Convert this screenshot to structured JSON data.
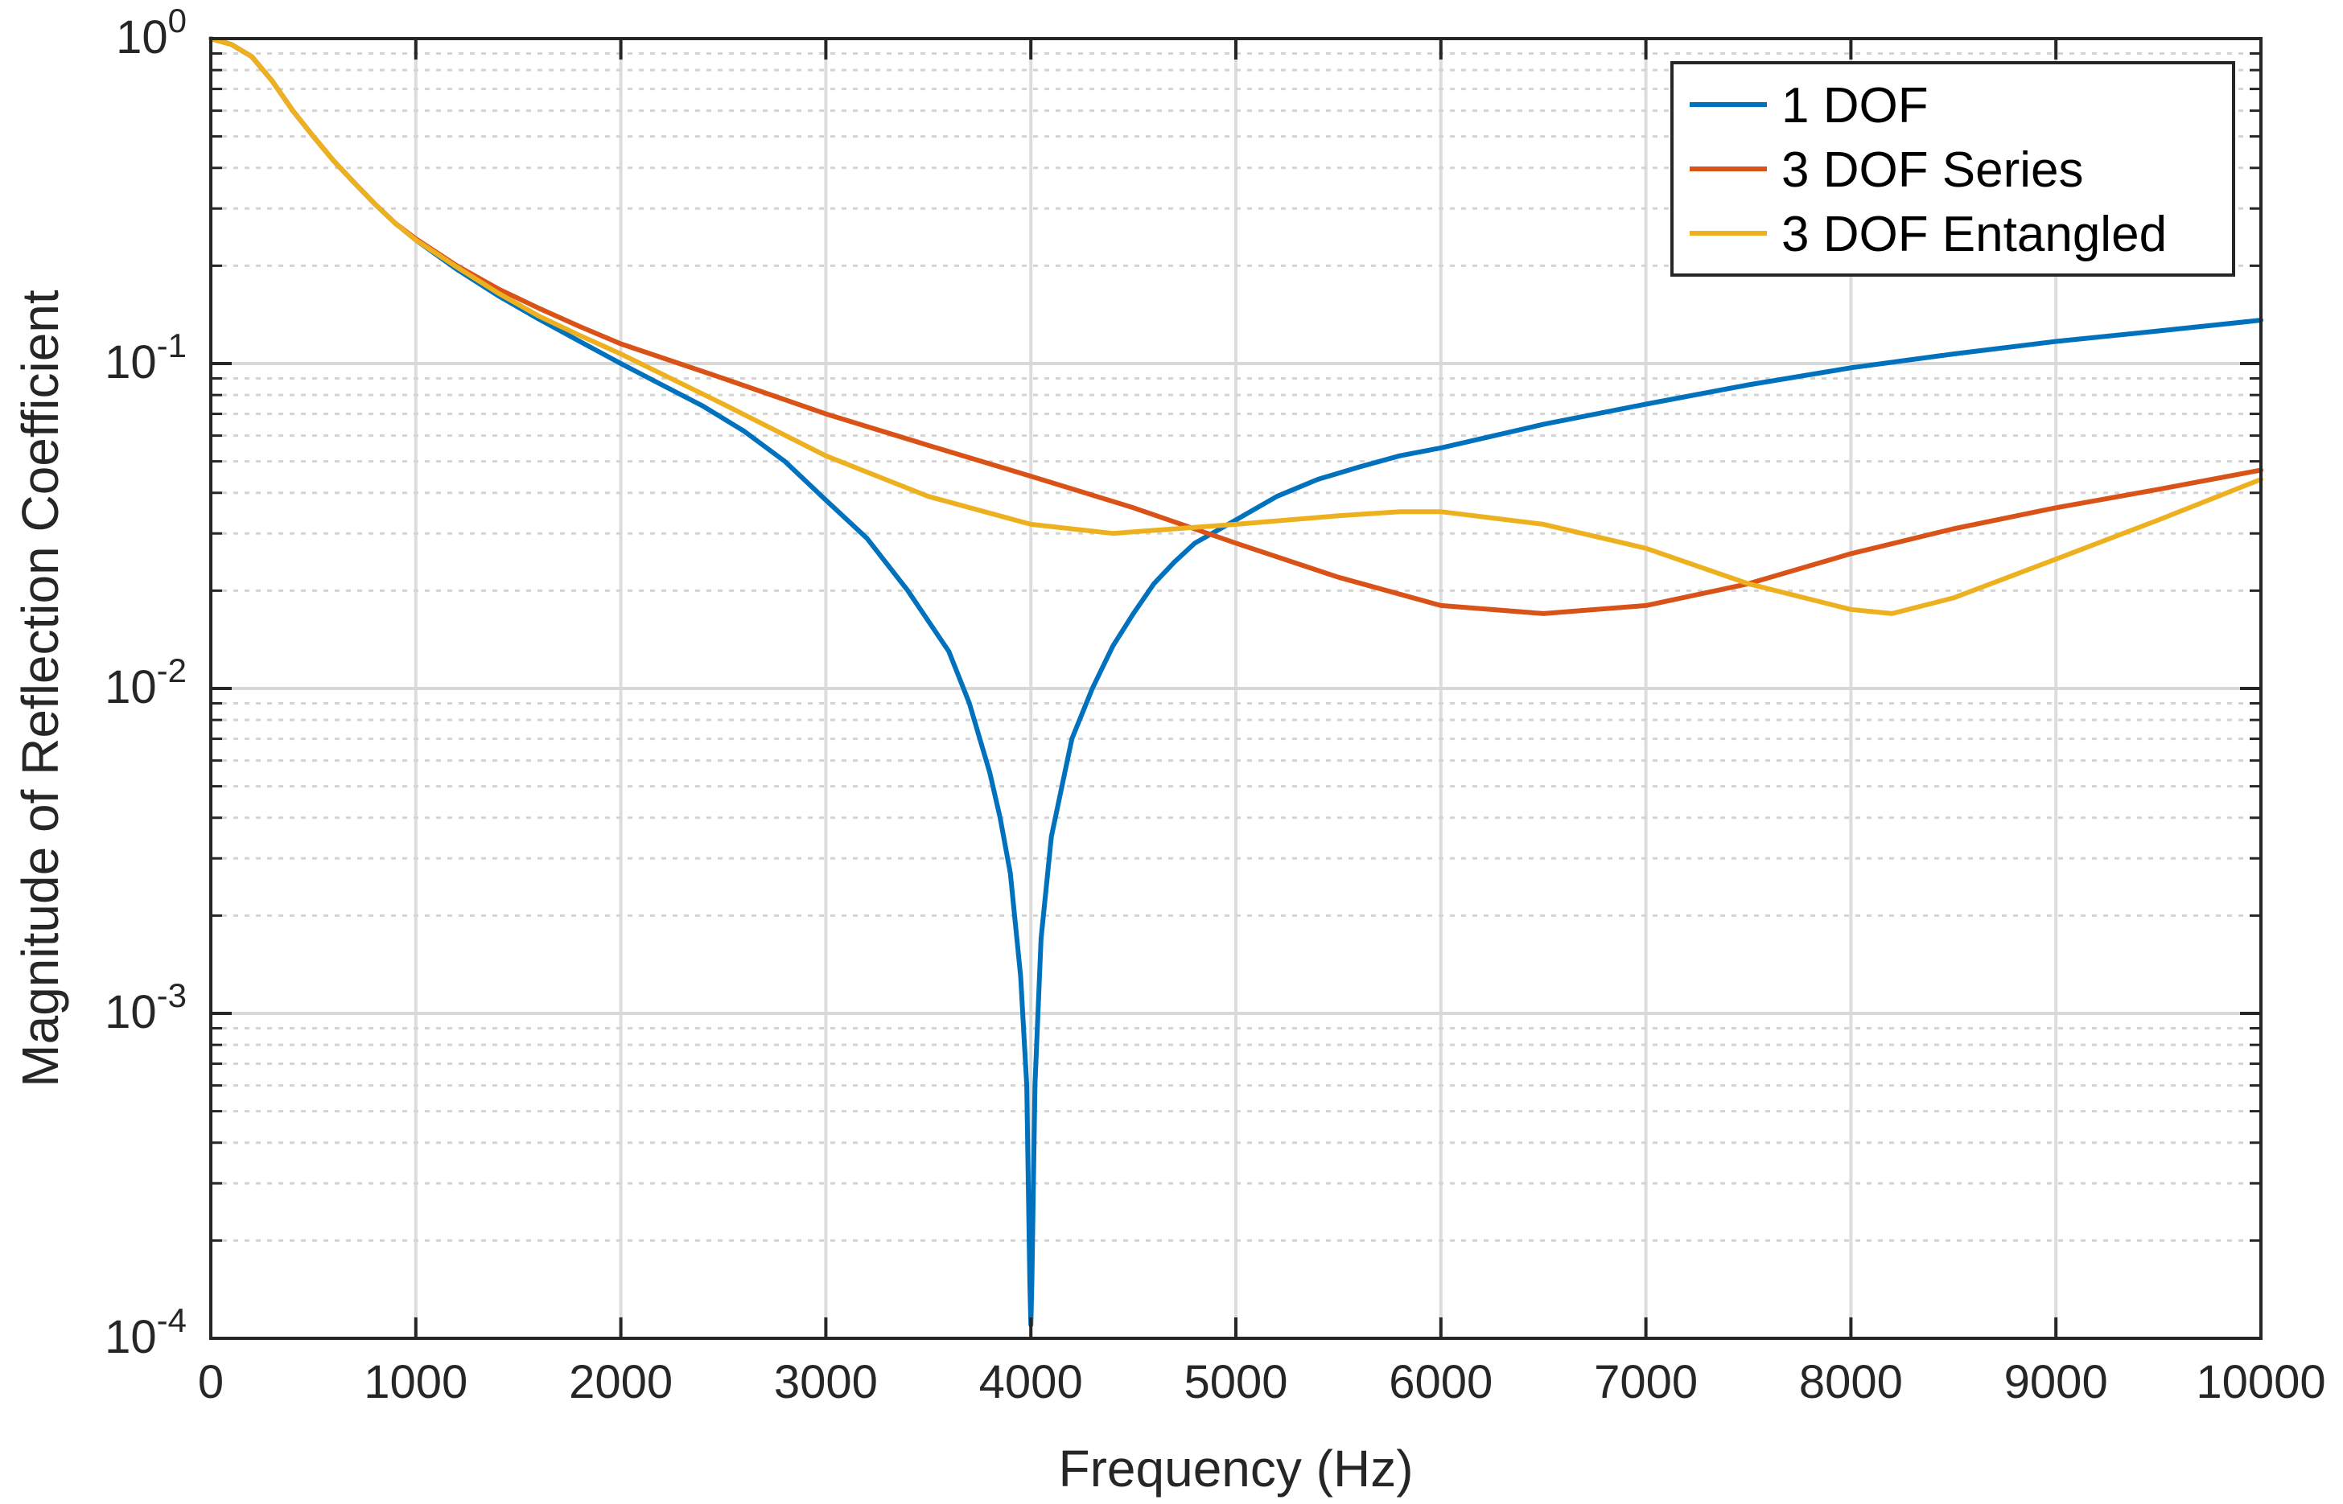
{
  "chart_data": {
    "type": "line",
    "title": "",
    "xlabel": "Frequency (Hz)",
    "ylabel": "Magnitude of Reflection Coefficient",
    "yscale": "log",
    "xlim": [
      0,
      10000
    ],
    "ylim": [
      0.0001,
      1
    ],
    "grid": true,
    "minor_grid": true,
    "legend_position": "top-right",
    "x_ticks": [
      0,
      1000,
      2000,
      3000,
      4000,
      5000,
      6000,
      7000,
      8000,
      9000,
      10000
    ],
    "x_tick_labels": [
      "0",
      "1000",
      "2000",
      "3000",
      "4000",
      "5000",
      "6000",
      "7000",
      "8000",
      "9000",
      "10000"
    ],
    "y_ticks": [
      {
        "value": 1,
        "base": "10",
        "exp": "0"
      },
      {
        "value": 0.1,
        "base": "10",
        "exp": "-1"
      },
      {
        "value": 0.01,
        "base": "10",
        "exp": "-2"
      },
      {
        "value": 0.001,
        "base": "10",
        "exp": "-3"
      },
      {
        "value": 0.0001,
        "base": "10",
        "exp": "-4"
      }
    ],
    "series": [
      {
        "name": "1 DOF",
        "color": "#0072BD",
        "points": [
          [
            0,
            1.0
          ],
          [
            100,
            0.96
          ],
          [
            200,
            0.88
          ],
          [
            300,
            0.74
          ],
          [
            400,
            0.6
          ],
          [
            500,
            0.5
          ],
          [
            600,
            0.42
          ],
          [
            700,
            0.36
          ],
          [
            800,
            0.31
          ],
          [
            900,
            0.27
          ],
          [
            1000,
            0.24
          ],
          [
            1200,
            0.195
          ],
          [
            1400,
            0.162
          ],
          [
            1600,
            0.137
          ],
          [
            1800,
            0.117
          ],
          [
            2000,
            0.1
          ],
          [
            2200,
            0.086
          ],
          [
            2400,
            0.074
          ],
          [
            2600,
            0.062
          ],
          [
            2800,
            0.05
          ],
          [
            3000,
            0.038
          ],
          [
            3200,
            0.029
          ],
          [
            3400,
            0.02
          ],
          [
            3600,
            0.013
          ],
          [
            3700,
            0.009
          ],
          [
            3800,
            0.0055
          ],
          [
            3850,
            0.004
          ],
          [
            3900,
            0.0027
          ],
          [
            3950,
            0.0013
          ],
          [
            3980,
            0.0006
          ],
          [
            3995,
            0.00015
          ],
          [
            4000,
            0.00011
          ],
          [
            4005,
            0.00015
          ],
          [
            4020,
            0.0006
          ],
          [
            4050,
            0.0017
          ],
          [
            4100,
            0.0035
          ],
          [
            4200,
            0.007
          ],
          [
            4300,
            0.01
          ],
          [
            4400,
            0.0135
          ],
          [
            4500,
            0.017
          ],
          [
            4600,
            0.021
          ],
          [
            4700,
            0.0245
          ],
          [
            4800,
            0.028
          ],
          [
            5000,
            0.033
          ],
          [
            5200,
            0.039
          ],
          [
            5400,
            0.044
          ],
          [
            5600,
            0.048
          ],
          [
            5800,
            0.052
          ],
          [
            6000,
            0.055
          ],
          [
            6500,
            0.065
          ],
          [
            7000,
            0.075
          ],
          [
            7500,
            0.086
          ],
          [
            8000,
            0.097
          ],
          [
            8500,
            0.107
          ],
          [
            9000,
            0.117
          ],
          [
            9500,
            0.126
          ],
          [
            10000,
            0.136
          ]
        ]
      },
      {
        "name": "3 DOF Series",
        "color": "#D95319",
        "points": [
          [
            0,
            1.0
          ],
          [
            100,
            0.96
          ],
          [
            200,
            0.88
          ],
          [
            300,
            0.74
          ],
          [
            400,
            0.6
          ],
          [
            500,
            0.5
          ],
          [
            600,
            0.42
          ],
          [
            700,
            0.36
          ],
          [
            800,
            0.31
          ],
          [
            900,
            0.27
          ],
          [
            1000,
            0.242
          ],
          [
            1200,
            0.2
          ],
          [
            1400,
            0.17
          ],
          [
            1600,
            0.148
          ],
          [
            1800,
            0.13
          ],
          [
            2000,
            0.115
          ],
          [
            2500,
            0.09
          ],
          [
            3000,
            0.07
          ],
          [
            3500,
            0.056
          ],
          [
            4000,
            0.045
          ],
          [
            4500,
            0.036
          ],
          [
            5000,
            0.028
          ],
          [
            5500,
            0.022
          ],
          [
            6000,
            0.018
          ],
          [
            6500,
            0.017
          ],
          [
            7000,
            0.018
          ],
          [
            7500,
            0.021
          ],
          [
            8000,
            0.026
          ],
          [
            8500,
            0.031
          ],
          [
            9000,
            0.036
          ],
          [
            9500,
            0.041
          ],
          [
            10000,
            0.047
          ]
        ]
      },
      {
        "name": "3 DOF Entangled",
        "color": "#EDB120",
        "points": [
          [
            0,
            1.0
          ],
          [
            100,
            0.96
          ],
          [
            200,
            0.88
          ],
          [
            300,
            0.74
          ],
          [
            400,
            0.6
          ],
          [
            500,
            0.5
          ],
          [
            600,
            0.42
          ],
          [
            700,
            0.36
          ],
          [
            800,
            0.31
          ],
          [
            900,
            0.27
          ],
          [
            1000,
            0.24
          ],
          [
            1200,
            0.198
          ],
          [
            1400,
            0.165
          ],
          [
            1600,
            0.14
          ],
          [
            1800,
            0.122
          ],
          [
            2000,
            0.107
          ],
          [
            2500,
            0.075
          ],
          [
            3000,
            0.052
          ],
          [
            3500,
            0.039
          ],
          [
            4000,
            0.032
          ],
          [
            4400,
            0.03
          ],
          [
            5000,
            0.032
          ],
          [
            5500,
            0.034
          ],
          [
            5800,
            0.035
          ],
          [
            6000,
            0.035
          ],
          [
            6500,
            0.032
          ],
          [
            7000,
            0.027
          ],
          [
            7500,
            0.021
          ],
          [
            8000,
            0.0175
          ],
          [
            8200,
            0.017
          ],
          [
            8500,
            0.019
          ],
          [
            9000,
            0.025
          ],
          [
            9500,
            0.033
          ],
          [
            10000,
            0.044
          ]
        ]
      }
    ]
  }
}
